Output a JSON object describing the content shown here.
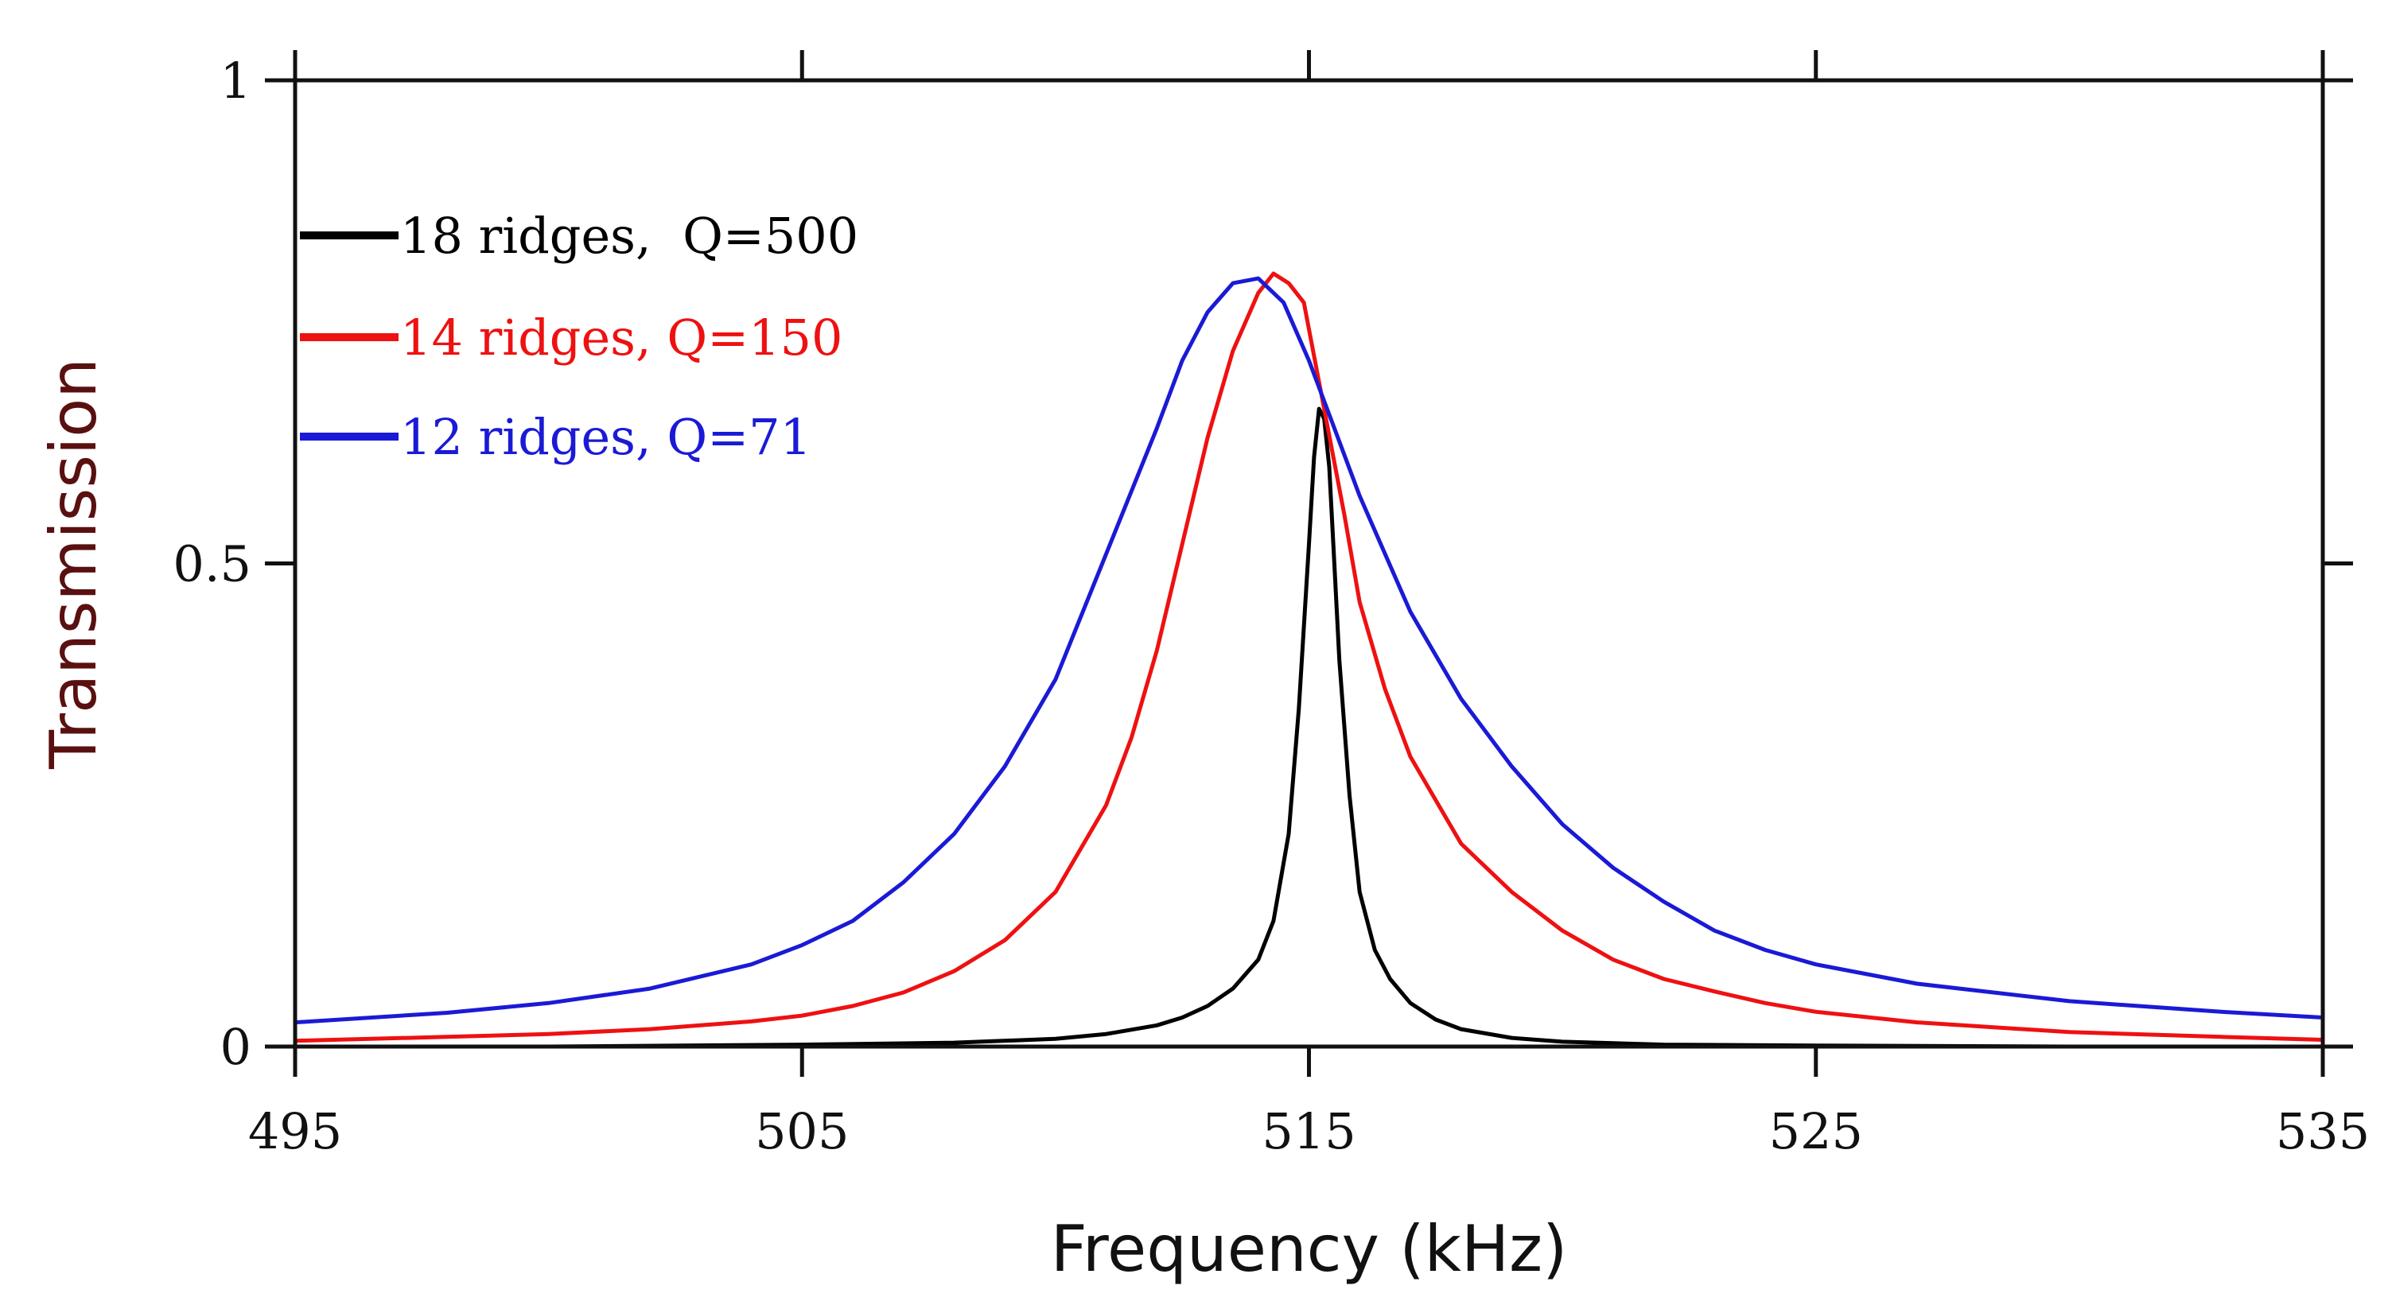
{
  "chart_data": {
    "type": "line",
    "xlabel": "Frequency (kHz)",
    "ylabel": "Transmission",
    "xlim": [
      495,
      535
    ],
    "ylim": [
      0,
      1
    ],
    "xticks": [
      495,
      505,
      515,
      525,
      535
    ],
    "xtick_labels": [
      "495",
      "505",
      "515",
      "525",
      "535"
    ],
    "yticks": [
      0,
      0.5,
      1
    ],
    "ytick_labels": [
      "0",
      "0.5",
      "1"
    ],
    "grid": false,
    "legend_position": "upper-left",
    "colors": {
      "axis": "#111111",
      "ylabel": "#5a1010",
      "xlabel": "#111111"
    },
    "series": [
      {
        "name": "18 ridges,  Q=500",
        "color": "#000000",
        "x": [
          495,
          500,
          505,
          508,
          510,
          511,
          512,
          512.5,
          513,
          513.5,
          514,
          514.3,
          514.6,
          514.8,
          515,
          515.1,
          515.2,
          515.3,
          515.4,
          515.5,
          515.6,
          515.8,
          516,
          516.3,
          516.6,
          517,
          517.5,
          518,
          519,
          520,
          522,
          525,
          530,
          535
        ],
        "values": [
          0.0,
          0.0,
          0.002,
          0.004,
          0.008,
          0.013,
          0.022,
          0.03,
          0.042,
          0.06,
          0.09,
          0.13,
          0.22,
          0.35,
          0.52,
          0.61,
          0.66,
          0.65,
          0.6,
          0.5,
          0.4,
          0.26,
          0.16,
          0.1,
          0.07,
          0.045,
          0.028,
          0.018,
          0.009,
          0.005,
          0.002,
          0.001,
          0.0,
          0.0
        ]
      },
      {
        "name": "14 ridges, Q=150",
        "color": "#ee1111",
        "x": [
          495,
          498,
          500,
          502,
          504,
          505,
          506,
          507,
          508,
          509,
          510,
          511,
          511.5,
          512,
          512.5,
          513,
          513.5,
          514,
          514.3,
          514.6,
          514.9,
          515.3,
          515.7,
          516,
          516.5,
          517,
          518,
          519,
          520,
          521,
          522,
          523,
          524,
          525,
          527,
          530,
          533,
          535
        ],
        "values": [
          0.006,
          0.01,
          0.013,
          0.018,
          0.026,
          0.032,
          0.042,
          0.056,
          0.078,
          0.11,
          0.16,
          0.25,
          0.32,
          0.41,
          0.52,
          0.63,
          0.72,
          0.78,
          0.8,
          0.79,
          0.77,
          0.66,
          0.55,
          0.46,
          0.37,
          0.3,
          0.21,
          0.16,
          0.12,
          0.09,
          0.07,
          0.057,
          0.045,
          0.036,
          0.025,
          0.015,
          0.01,
          0.007
        ]
      },
      {
        "name": "12 ridges, Q=71",
        "color": "#1a1ad6",
        "x": [
          495,
          498,
          500,
          502,
          504,
          505,
          506,
          507,
          508,
          509,
          510,
          511,
          512,
          512.5,
          513,
          513.5,
          514,
          514.5,
          515,
          515.5,
          516,
          517,
          518,
          519,
          520,
          521,
          522,
          523,
          524,
          525,
          527,
          530,
          533,
          535
        ],
        "values": [
          0.025,
          0.035,
          0.045,
          0.06,
          0.085,
          0.105,
          0.13,
          0.17,
          0.22,
          0.29,
          0.38,
          0.51,
          0.64,
          0.71,
          0.76,
          0.79,
          0.795,
          0.77,
          0.71,
          0.64,
          0.57,
          0.45,
          0.36,
          0.29,
          0.23,
          0.185,
          0.15,
          0.12,
          0.1,
          0.085,
          0.065,
          0.047,
          0.036,
          0.03
        ]
      }
    ]
  }
}
